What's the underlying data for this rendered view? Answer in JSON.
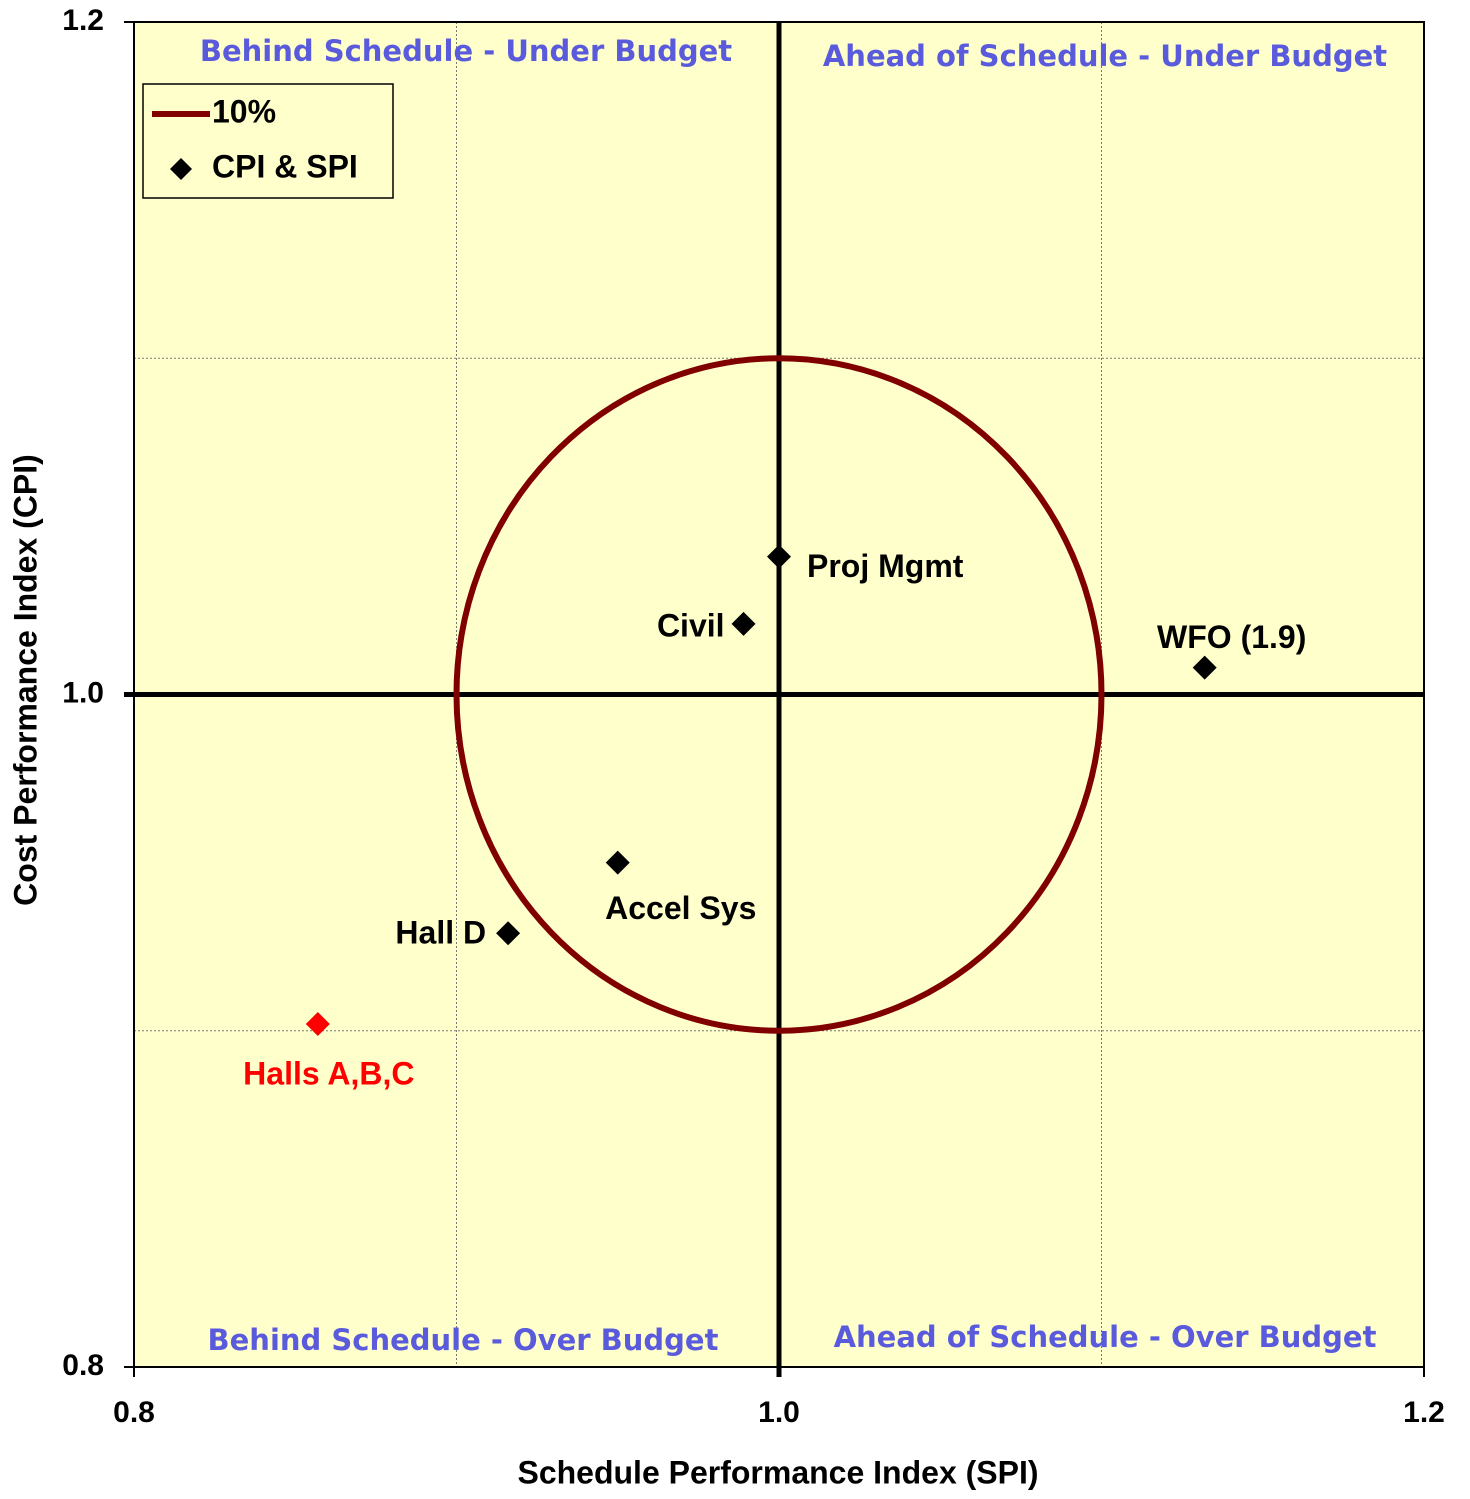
{
  "chart_data": {
    "type": "scatter",
    "x_label": "Schedule Performance Index (SPI)",
    "y_label": "Cost Performance Index (CPI)",
    "xlim": [
      0.8,
      1.2
    ],
    "ylim": [
      0.8,
      1.2
    ],
    "xticks": [
      0.8,
      {
        "value": 1,
        "label": "1.0"
      },
      1.2
    ],
    "yticks": [
      0.8,
      {
        "value": 1,
        "label": "1.0"
      },
      1.2
    ],
    "xgrid": [
      0.9,
      1.1
    ],
    "ygrid": [
      0.9,
      1.1
    ],
    "grid": true,
    "background": "#ffffcc",
    "legend": "upper left",
    "circle": {
      "name": "10%",
      "color": "#800000",
      "center": [
        1,
        1
      ],
      "radius": 0.1
    },
    "series": [
      {
        "name": "CPI & SPI",
        "color": "#000000",
        "labels": [
          "Proj Mgmt",
          "Civil",
          "WFO (1.9)",
          "Accel Sys",
          "Hall D",
          "Halls A,B,C"
        ],
        "x": [
          1.0,
          0.989,
          1.132,
          0.95,
          0.916,
          0.857
        ],
        "values": [
          1.041,
          1.021,
          1.008,
          0.95,
          0.929,
          0.902
        ],
        "point_colors": [
          "#000000",
          "#000000",
          "#000000",
          "#000000",
          "#000000",
          "#ff0000"
        ]
      }
    ],
    "annotations": [
      {
        "text": "Behind Schedule - Under Budget",
        "color": "#5a5adc"
      },
      {
        "text": "Ahead of Schedule - Under Budget",
        "color": "#5a5adc"
      },
      {
        "text": "Behind Schedule - Over Budget",
        "color": "#5a5adc"
      },
      {
        "text": "Ahead of Schedule - Over Budget",
        "color": "#5a5adc"
      }
    ]
  }
}
